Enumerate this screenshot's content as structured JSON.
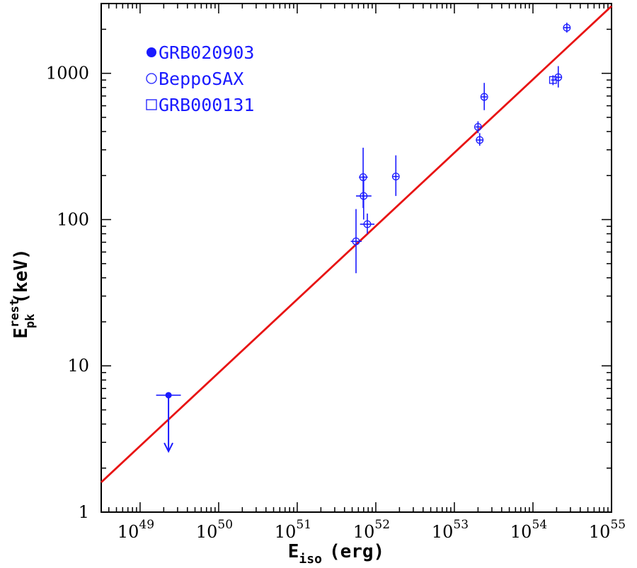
{
  "chart_data": {
    "type": "scatter",
    "x_scale": "log",
    "y_scale": "log",
    "xlim": [
      3.2e+48,
      1e+55
    ],
    "ylim": [
      1,
      3000
    ],
    "xlabel": {
      "main": "E",
      "sub": "iso",
      "unit": "(erg)"
    },
    "ylabel": {
      "main": "E",
      "sup": "rest",
      "sub": "pk",
      "unit": "(keV)"
    },
    "x_ticks": [
      {
        "value": 1e+49,
        "base": "10",
        "exp": "49"
      },
      {
        "value": 1e+50,
        "base": "10",
        "exp": "50"
      },
      {
        "value": 1e+51,
        "base": "10",
        "exp": "51"
      },
      {
        "value": 1e+52,
        "base": "10",
        "exp": "52"
      },
      {
        "value": 1e+53,
        "base": "10",
        "exp": "53"
      },
      {
        "value": 1e+54,
        "base": "10",
        "exp": "54"
      },
      {
        "value": 1e+55,
        "base": "10",
        "exp": "55"
      }
    ],
    "y_ticks": [
      {
        "value": 1,
        "label": "1"
      },
      {
        "value": 10,
        "label": "10"
      },
      {
        "value": 100,
        "label": "100"
      },
      {
        "value": 1000,
        "label": "1000"
      }
    ],
    "legend_position": "top-left",
    "legend": [
      {
        "marker": "filled-circle",
        "label": "GRB020903"
      },
      {
        "marker": "open-circle",
        "label": "BeppoSAX"
      },
      {
        "marker": "open-square",
        "label": "GRB000131"
      }
    ],
    "series": [
      {
        "name": "GRB020903",
        "marker": "filled-circle",
        "points": [
          {
            "x": 2.3e+49,
            "y": 6.3,
            "xerr": [
              1.6e+49,
              3.3e+49
            ],
            "upper_limit_to": 2.6
          }
        ]
      },
      {
        "name": "BeppoSAX",
        "marker": "open-circle",
        "points": [
          {
            "x": 5.6e+51,
            "y": 71,
            "xerr": [
              4.8e+51,
              6.6e+51
            ],
            "yerr": [
              43,
              118
            ]
          },
          {
            "x": 6.9e+51,
            "y": 195,
            "xerr": [
              6.1e+51,
              7.9e+51
            ],
            "yerr": [
              120,
              310
            ]
          },
          {
            "x": 7e+51,
            "y": 145,
            "xerr": [
              5.6e+51,
              8.8e+51
            ],
            "yerr": [
              100,
              200
            ]
          },
          {
            "x": 7.8e+51,
            "y": 93,
            "xerr": [
              6.3e+51,
              9.6e+51
            ],
            "yerr": [
              80,
              110
            ]
          },
          {
            "x": 1.8e+52,
            "y": 197,
            "xerr": [
              1.65e+52,
              1.95e+52
            ],
            "yerr": [
              145,
              275
            ]
          },
          {
            "x": 2e+53,
            "y": 430,
            "xerr": [
              1.85e+53,
              2.2e+53
            ],
            "yerr": [
              390,
              470
            ]
          },
          {
            "x": 2.1e+53,
            "y": 350,
            "xerr": [
              1.9e+53,
              2.3e+53
            ],
            "yerr": [
              320,
              390
            ]
          },
          {
            "x": 2.4e+53,
            "y": 690,
            "xerr": [
              2.2e+53,
              2.6e+53
            ],
            "yerr": [
              560,
              860
            ]
          },
          {
            "x": 2.1e+54,
            "y": 940,
            "xerr": [
              1.95e+54,
              2.3e+54
            ],
            "yerr": [
              800,
              1120
            ]
          },
          {
            "x": 2.7e+54,
            "y": 2050,
            "xerr": [
              2.45e+54,
              3e+54
            ],
            "yerr": [
              1900,
              2220
            ]
          }
        ]
      },
      {
        "name": "GRB000131",
        "marker": "open-square",
        "points": [
          {
            "x": 1.8e+54,
            "y": 900,
            "xerr": [
              1.7e+54,
              1.95e+54
            ],
            "yerr": [
              830,
              970
            ]
          }
        ]
      }
    ],
    "fit_line": {
      "x": [
        3.2e+48,
        1e+55
      ],
      "y": [
        1.6,
        2880
      ]
    },
    "colors": {
      "points": "#1a1aff",
      "fit": "#e81414",
      "axes": "#000000"
    }
  }
}
